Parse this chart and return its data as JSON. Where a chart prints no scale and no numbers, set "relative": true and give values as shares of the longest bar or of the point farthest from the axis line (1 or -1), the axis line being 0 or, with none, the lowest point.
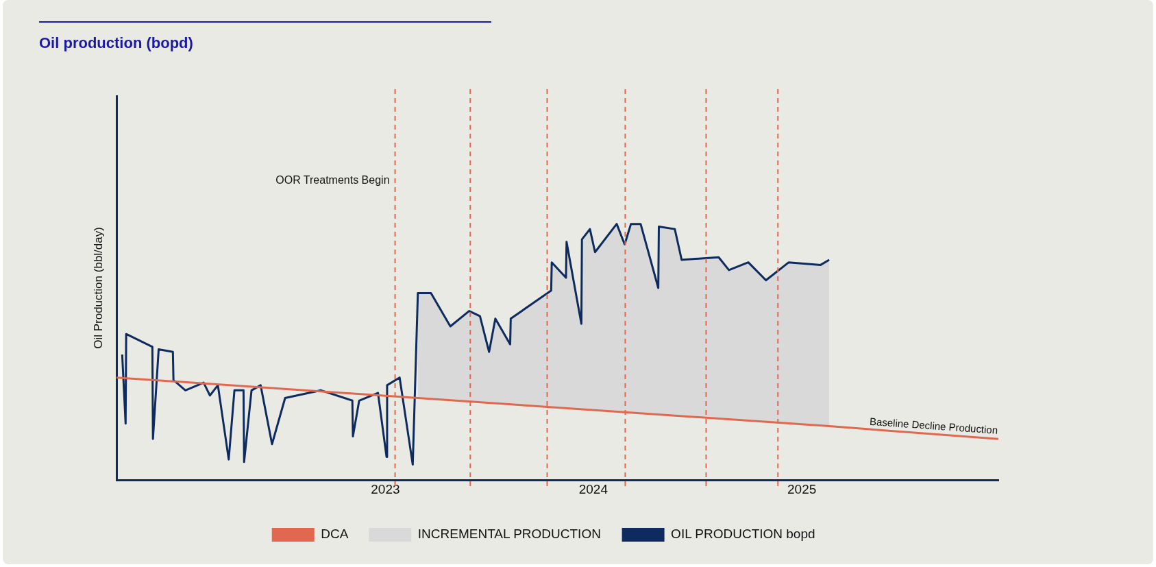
{
  "chart_data": {
    "type": "line",
    "title": "Oil production (bopd)",
    "ylabel": "Oil Production (bbl/day)",
    "relative": true,
    "legend": "bottom",
    "xlim": [
      "2021-09-16",
      "2025-12-12"
    ],
    "xticks": [
      "2023",
      "2024",
      "2025"
    ],
    "series": [
      {
        "name": "DCA",
        "type": "line",
        "color": "#e2674f",
        "x": [
          "2021-09-16",
          "2023-02-27",
          "2025-02-18",
          "2025-12-12"
        ],
        "values": [
          0.4,
          0.32,
          0.21,
          0.16
        ]
      },
      {
        "name": "INCREMENTAL PRODUCTION",
        "type": "area",
        "color": "#d9d9d9",
        "x": [
          "2023-02-27",
          "2023-03-22",
          "2023-04-25",
          "2023-05-28",
          "2023-06-16",
          "2023-07-02",
          "2023-07-13",
          "2023-08-08",
          "2023-08-09",
          "2023-10-19",
          "2023-10-20",
          "2023-11-14",
          "2023-11-15",
          "2023-12-11",
          "2023-12-12",
          "2023-12-26",
          "2024-01-04",
          "2024-02-11",
          "2024-02-25",
          "2024-03-07",
          "2024-03-24",
          "2024-04-24",
          "2024-04-25",
          "2024-05-23",
          "2024-06-04",
          "2024-08-08",
          "2024-08-26",
          "2024-09-29",
          "2024-10-30",
          "2024-12-09",
          "2025-02-03",
          "2025-02-18"
        ],
        "values": [
          0.73,
          0.73,
          0.6,
          0.66,
          0.64,
          0.5,
          0.63,
          0.53,
          0.63,
          0.74,
          0.85,
          0.79,
          0.93,
          0.61,
          0.94,
          0.98,
          0.89,
          1.0,
          0.92,
          1.0,
          1.0,
          0.75,
          0.99,
          0.98,
          0.86,
          0.87,
          0.82,
          0.85,
          0.78,
          0.85,
          0.84,
          0.86
        ]
      },
      {
        "name": "OIL PRODUCTION bopd",
        "type": "line",
        "color": "#0d2b5e",
        "x": [
          "2021-09-26",
          "2021-10-02",
          "2021-10-03",
          "2021-11-18",
          "2021-11-19",
          "2021-11-29",
          "2021-12-24",
          "2021-12-25",
          "2022-01-15",
          "2022-02-16",
          "2022-02-27",
          "2022-03-13",
          "2022-04-01",
          "2022-04-11",
          "2022-04-27",
          "2022-04-28",
          "2022-05-11",
          "2022-05-27",
          "2022-06-16",
          "2022-07-09",
          "2022-09-10",
          "2022-11-04",
          "2022-11-05",
          "2022-11-16",
          "2022-12-19",
          "2023-01-03",
          "2023-01-04",
          "2023-01-26",
          "2023-02-18",
          "2023-02-27",
          "2023-03-22",
          "2023-04-25",
          "2023-05-28",
          "2023-06-16",
          "2023-07-02",
          "2023-07-13",
          "2023-08-08",
          "2023-08-09",
          "2023-10-19",
          "2023-10-20",
          "2023-11-14",
          "2023-11-15",
          "2023-12-11",
          "2023-12-12",
          "2023-12-26",
          "2024-01-04",
          "2024-02-11",
          "2024-02-25",
          "2024-03-07",
          "2024-03-24",
          "2024-04-24",
          "2024-04-25",
          "2024-05-23",
          "2024-06-04",
          "2024-08-08",
          "2024-08-26",
          "2024-09-29",
          "2024-10-30",
          "2024-12-09",
          "2025-02-03",
          "2025-02-18"
        ],
        "values": [
          0.49,
          0.22,
          0.57,
          0.52,
          0.16,
          0.51,
          0.5,
          0.39,
          0.35,
          0.38,
          0.33,
          0.37,
          0.08,
          0.35,
          0.35,
          0.07,
          0.35,
          0.37,
          0.14,
          0.32,
          0.35,
          0.31,
          0.17,
          0.31,
          0.34,
          0.09,
          0.37,
          0.4,
          0.06,
          0.73,
          0.73,
          0.6,
          0.66,
          0.64,
          0.5,
          0.63,
          0.53,
          0.63,
          0.74,
          0.85,
          0.79,
          0.93,
          0.61,
          0.94,
          0.98,
          0.89,
          1.0,
          0.92,
          1.0,
          1.0,
          0.75,
          0.99,
          0.98,
          0.86,
          0.87,
          0.82,
          0.85,
          0.78,
          0.85,
          0.84,
          0.86
        ]
      }
    ],
    "ref_lines": [
      {
        "axis": "x",
        "value": "2023-01-18",
        "label": "OOR Treatments Begin",
        "color": "#e2674f",
        "line_style": "dashed"
      },
      {
        "axis": "x",
        "value": "2023-05-30",
        "color": "#e2674f",
        "line_style": "dashed"
      },
      {
        "axis": "x",
        "value": "2023-10-12",
        "color": "#e2674f",
        "line_style": "dashed"
      },
      {
        "axis": "x",
        "value": "2024-02-26",
        "color": "#e2674f",
        "line_style": "dashed"
      },
      {
        "axis": "x",
        "value": "2024-07-17",
        "color": "#e2674f",
        "line_style": "dashed"
      },
      {
        "axis": "x",
        "value": "2024-11-20",
        "color": "#e2674f",
        "line_style": "dashed"
      }
    ],
    "annotations": [
      "Baseline Decline Production"
    ]
  }
}
